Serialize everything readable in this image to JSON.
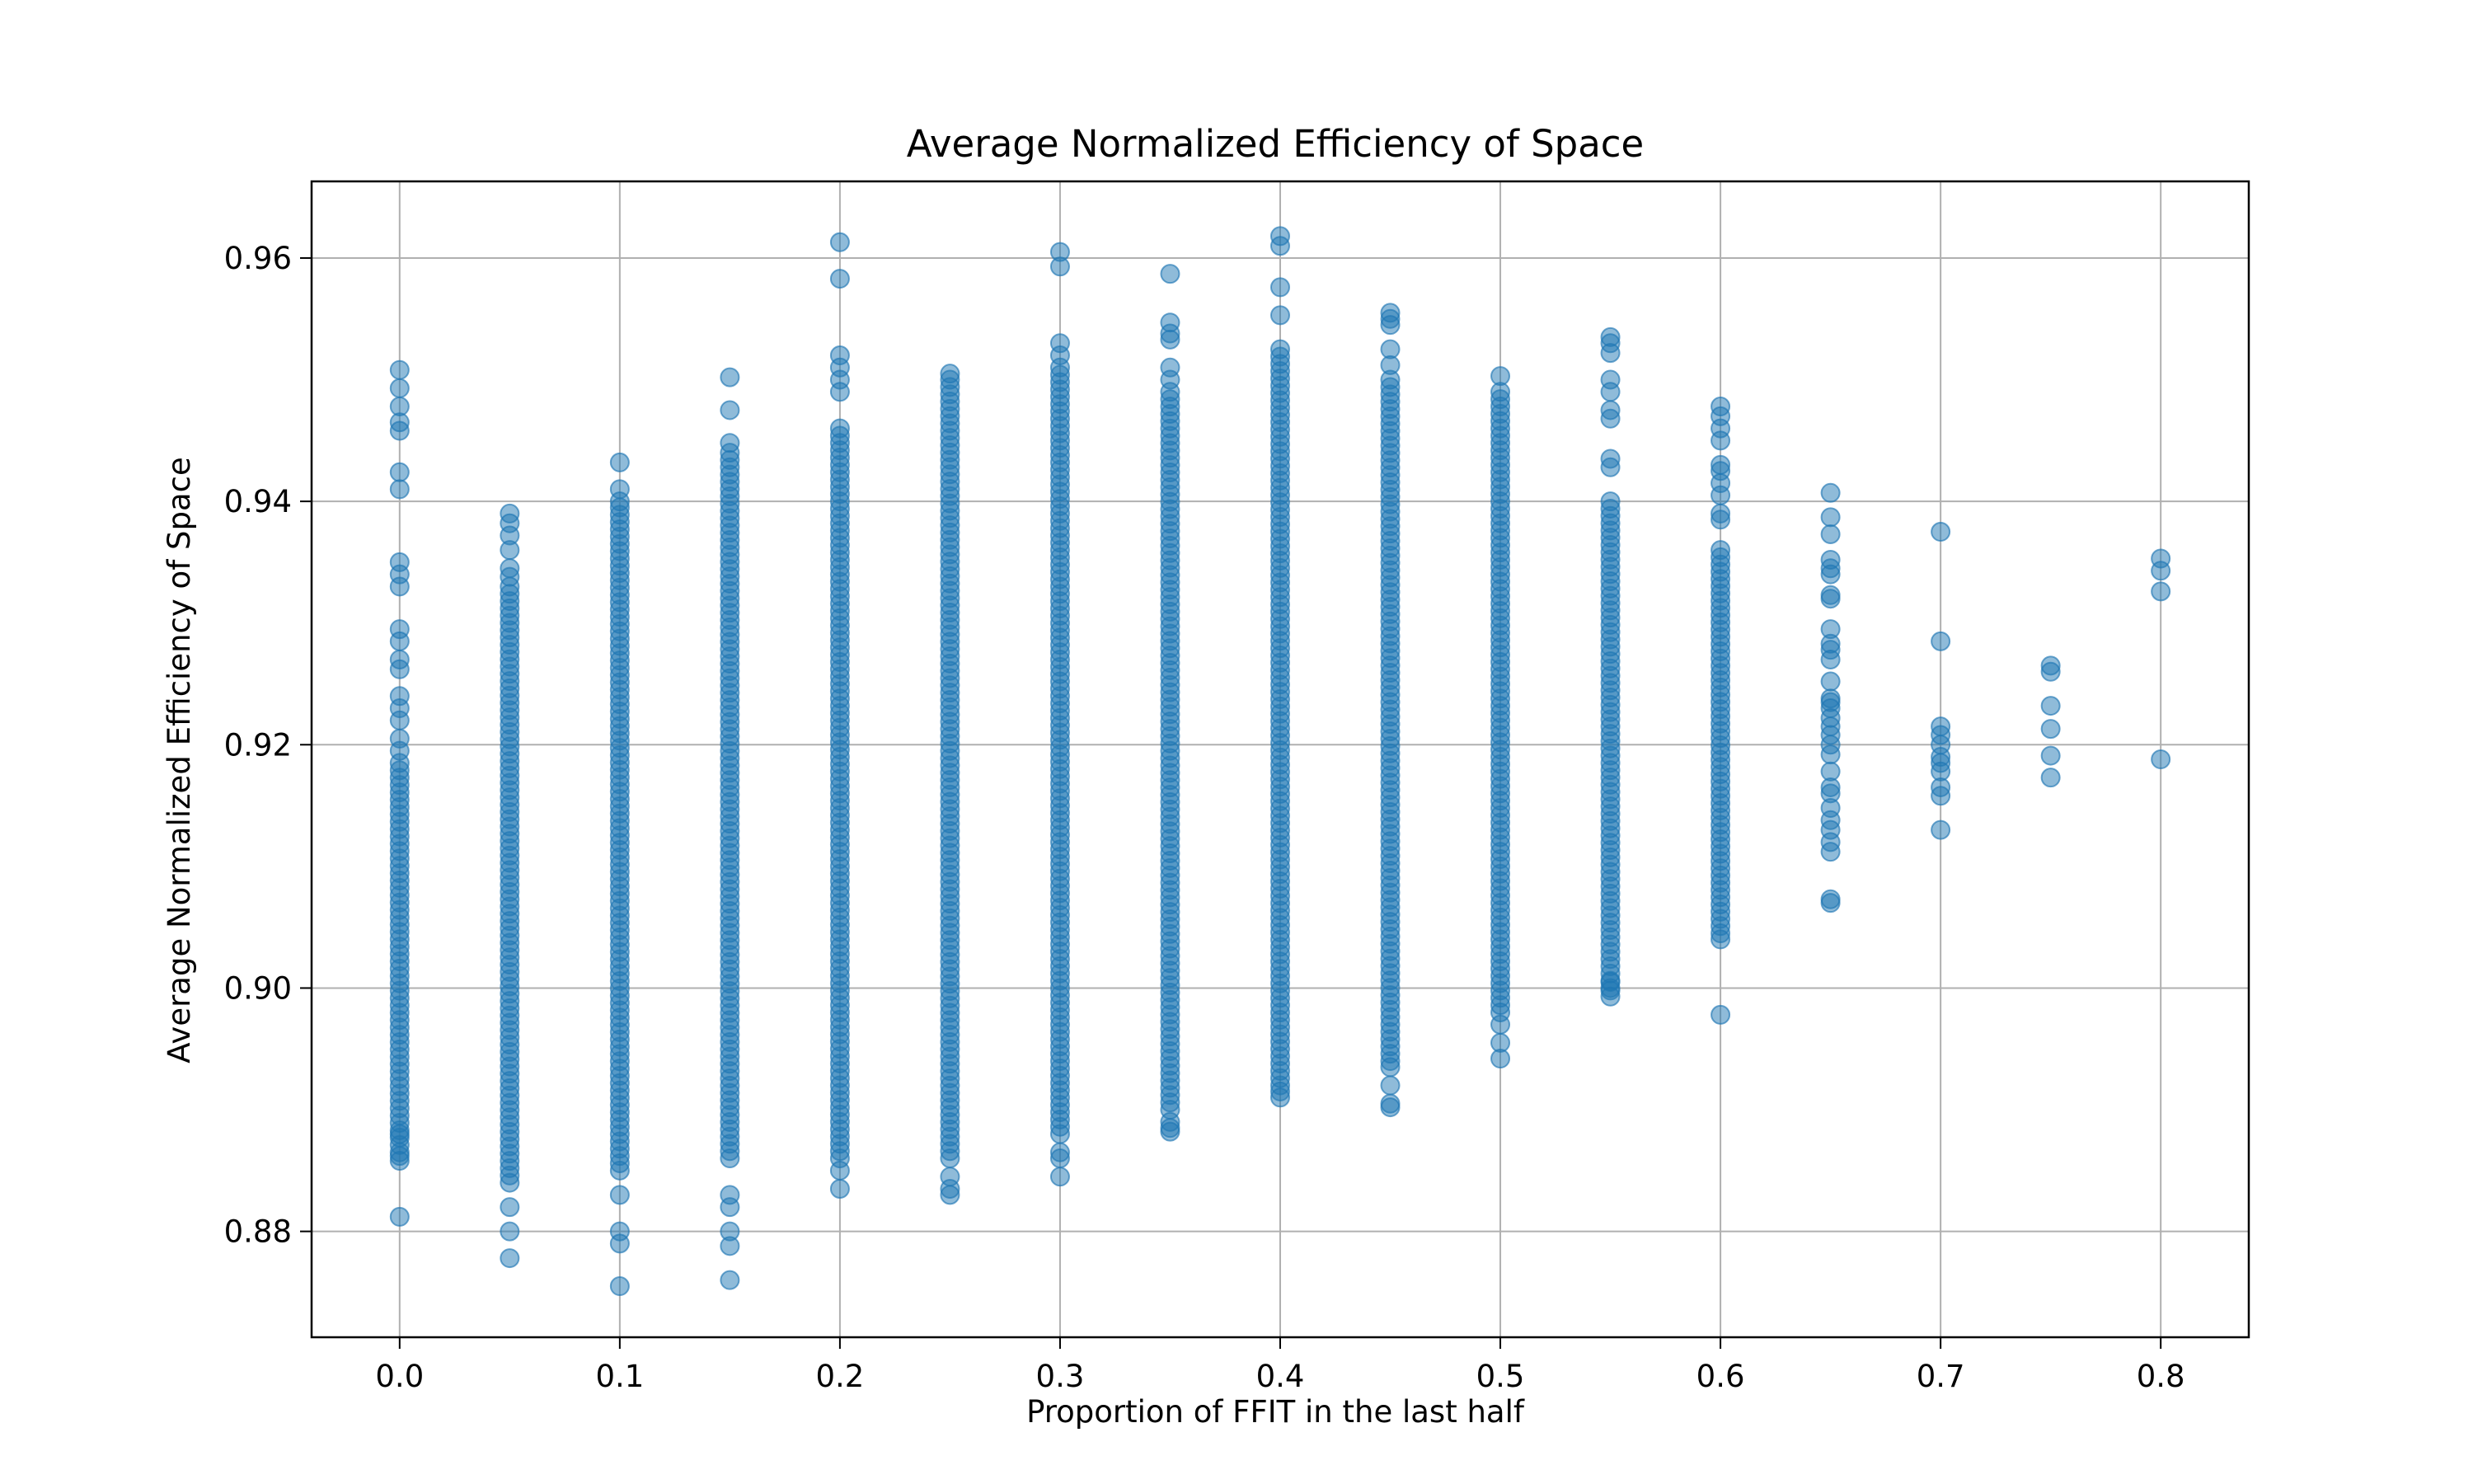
{
  "chart_data": {
    "type": "scatter",
    "title": "Average Normalized Efficiency of Space",
    "xlabel": "Proportion of FFIT in the last half",
    "ylabel": "Average Normalized Efficiency of Space",
    "xlim": [
      -0.04,
      0.84
    ],
    "ylim": [
      0.8713,
      0.9663
    ],
    "x_ticks": [
      0.0,
      0.1,
      0.2,
      0.3,
      0.4,
      0.5,
      0.6,
      0.7,
      0.8
    ],
    "x_tick_labels": [
      "0.0",
      "0.1",
      "0.2",
      "0.3",
      "0.4",
      "0.5",
      "0.6",
      "0.7",
      "0.8"
    ],
    "y_ticks": [
      0.88,
      0.9,
      0.92,
      0.94,
      0.96
    ],
    "y_tick_labels": [
      "0.88",
      "0.90",
      "0.92",
      "0.94",
      "0.96"
    ],
    "grid": true,
    "marker_color": "#1f77b4",
    "marker_alpha": 0.5,
    "series": [
      {
        "x": 0.0,
        "dense_range": [
          0.8865,
          0.9185
        ],
        "points": [
          0.9508,
          0.9493,
          0.9478,
          0.9465,
          0.9458,
          0.9424,
          0.941,
          0.935,
          0.934,
          0.933,
          0.9295,
          0.9285,
          0.927,
          0.9262,
          0.924,
          0.923,
          0.922,
          0.9205,
          0.9195,
          0.888,
          0.8862,
          0.8858,
          0.8812
        ]
      },
      {
        "x": 0.05,
        "dense_range": [
          0.884,
          0.933
        ],
        "points": [
          0.939,
          0.9382,
          0.9372,
          0.936,
          0.9345,
          0.9338,
          0.882,
          0.88,
          0.8778
        ]
      },
      {
        "x": 0.1,
        "dense_range": [
          0.885,
          0.9395
        ],
        "points": [
          0.9432,
          0.941,
          0.94,
          0.883,
          0.88,
          0.879,
          0.8755
        ]
      },
      {
        "x": 0.15,
        "dense_range": [
          0.886,
          0.944
        ],
        "points": [
          0.9502,
          0.9475,
          0.9448,
          0.883,
          0.882,
          0.88,
          0.8788,
          0.876
        ]
      },
      {
        "x": 0.2,
        "dense_range": [
          0.886,
          0.946
        ],
        "points": [
          0.9613,
          0.9583,
          0.952,
          0.951,
          0.95,
          0.949,
          0.885,
          0.8835
        ]
      },
      {
        "x": 0.25,
        "dense_range": [
          0.886,
          0.95
        ],
        "points": [
          0.9505,
          0.8845,
          0.8835,
          0.883
        ]
      },
      {
        "x": 0.3,
        "dense_range": [
          0.888,
          0.951
        ],
        "points": [
          0.9605,
          0.9593,
          0.953,
          0.952,
          0.8865,
          0.886,
          0.8845
        ]
      },
      {
        "x": 0.35,
        "dense_range": [
          0.89,
          0.949
        ],
        "points": [
          0.9587,
          0.9547,
          0.9538,
          0.9533,
          0.951,
          0.95,
          0.889,
          0.8885,
          0.8882
        ]
      },
      {
        "x": 0.4,
        "dense_range": [
          0.892,
          0.9525
        ],
        "points": [
          0.9618,
          0.961,
          0.9576,
          0.9553,
          0.8915,
          0.891
        ]
      },
      {
        "x": 0.45,
        "dense_range": [
          0.894,
          0.95
        ],
        "points": [
          0.9555,
          0.955,
          0.9545,
          0.9525,
          0.9512,
          0.8935,
          0.892,
          0.8905,
          0.8902
        ]
      },
      {
        "x": 0.5,
        "dense_range": [
          0.898,
          0.949
        ],
        "points": [
          0.9503,
          0.897,
          0.8955,
          0.8942
        ]
      },
      {
        "x": 0.55,
        "dense_range": [
          0.9,
          0.94
        ],
        "points": [
          0.9535,
          0.953,
          0.9522,
          0.95,
          0.949,
          0.9475,
          0.9468,
          0.9435,
          0.9428,
          0.9005,
          0.8998,
          0.8993
        ]
      },
      {
        "x": 0.6,
        "dense_range": [
          0.9045,
          0.936
        ],
        "points": [
          0.9478,
          0.947,
          0.946,
          0.945,
          0.943,
          0.9425,
          0.9415,
          0.9405,
          0.939,
          0.9385,
          0.904,
          0.8978
        ]
      },
      {
        "x": 0.65,
        "dense_range": null,
        "points": [
          0.9407,
          0.9387,
          0.9373,
          0.9352,
          0.9345,
          0.934,
          0.9323,
          0.932,
          0.9295,
          0.9283,
          0.9278,
          0.927,
          0.9252,
          0.9238,
          0.9235,
          0.923,
          0.9222,
          0.9215,
          0.9208,
          0.92,
          0.9192,
          0.9178,
          0.9165,
          0.916,
          0.9148,
          0.9138,
          0.913,
          0.912,
          0.9112,
          0.9073,
          0.907
        ]
      },
      {
        "x": 0.7,
        "dense_range": null,
        "points": [
          0.9375,
          0.9285,
          0.9215,
          0.9208,
          0.92,
          0.919,
          0.9185,
          0.9178,
          0.9165,
          0.9158,
          0.913
        ]
      },
      {
        "x": 0.75,
        "dense_range": null,
        "points": [
          0.9265,
          0.926,
          0.9232,
          0.9213,
          0.9191,
          0.9173
        ]
      },
      {
        "x": 0.8,
        "dense_range": null,
        "points": [
          0.9353,
          0.9343,
          0.9326,
          0.9188
        ]
      }
    ]
  }
}
